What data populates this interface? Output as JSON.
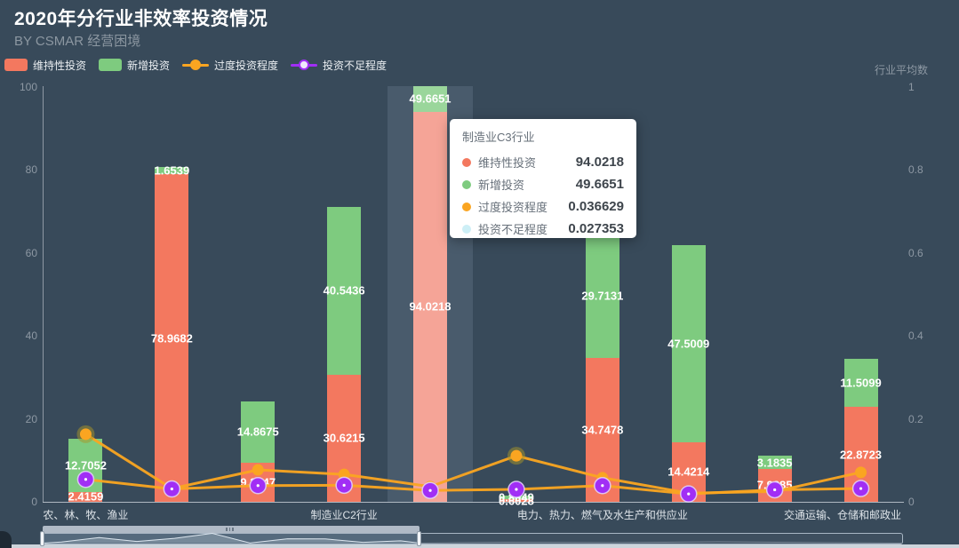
{
  "header": {
    "title": "2020年分行业非效率投资情况",
    "subtitle": "BY CSMAR 经营困境"
  },
  "legend": {
    "items": [
      {
        "label": "维持性投资",
        "type": "bar",
        "color": "#F3785F"
      },
      {
        "label": "新增投资",
        "type": "bar",
        "color": "#7ECB7F"
      },
      {
        "label": "过度投资程度",
        "type": "line",
        "color": "#FAA521"
      },
      {
        "label": "投资不足程度",
        "type": "line",
        "color": "#A12EF5"
      }
    ]
  },
  "axes": {
    "left": {
      "ticks": [
        "100",
        "80",
        "60",
        "40",
        "20",
        "0"
      ],
      "max": 100
    },
    "right": {
      "name": "行业平均数",
      "ticks": [
        "1",
        "0.8",
        "0.6",
        "0.4",
        "0.2",
        "0"
      ],
      "max": 1
    }
  },
  "chart_data": {
    "type": "bar",
    "categories": [
      "农、林、牧、渔业",
      "",
      "",
      "制造业C2行业",
      "制造业C3行业",
      "",
      "电力、热力、燃气及水生产和供应业",
      "",
      "",
      "交通运输、仓储和邮政业"
    ],
    "axis_label_indices": [
      0,
      3,
      6,
      9
    ],
    "series": [
      {
        "name": "维持性投资",
        "type": "bar",
        "yaxis": "left",
        "values": [
          2.4159,
          78.9682,
          9.3947,
          30.6215,
          94.0218,
          0.6028,
          34.7478,
          14.4214,
          7.9285,
          22.8723
        ]
      },
      {
        "name": "新增投资",
        "type": "bar",
        "yaxis": "left",
        "values": [
          12.7052,
          1.6539,
          14.8675,
          40.5436,
          49.6651,
          0.8049,
          29.7131,
          47.5009,
          3.1835,
          11.5099
        ]
      },
      {
        "name": "过度投资程度",
        "type": "line",
        "yaxis": "right",
        "values": [
          0.163,
          0.032,
          0.077,
          0.066,
          0.036629,
          0.111,
          0.058,
          0.021,
          0.025,
          0.071
        ]
      },
      {
        "name": "投资不足程度",
        "type": "line",
        "yaxis": "right",
        "values": [
          0.054,
          0.031,
          0.039,
          0.04,
          0.027353,
          0.03,
          0.039,
          0.019,
          0.029,
          0.032
        ]
      }
    ],
    "highlight_index": 4,
    "left_axis_range": [
      0,
      100
    ],
    "right_axis_range": [
      0,
      1
    ],
    "grid": false,
    "legend_position": "top-left"
  },
  "tooltip": {
    "title": "制造业C3行业",
    "rows": [
      {
        "label": "维持性投资",
        "value": "94.0218",
        "color": "#F3785F"
      },
      {
        "label": "新增投资",
        "value": "49.6651",
        "color": "#7ECB7F"
      },
      {
        "label": "过度投资程度",
        "value": "0.036629",
        "color": "#FAA521"
      },
      {
        "label": "投资不足程度",
        "value": "0.027353",
        "color": "#CDEFF6"
      }
    ]
  },
  "colors": {
    "background": "#384A5A",
    "bar_maintain": "#F3785F",
    "bar_maintain_hover": "#F5A497",
    "bar_new": "#7ECB7F",
    "bar_new_hover": "#9AD69B",
    "line_over": "#FAA521",
    "dot_under": "#A12EF5",
    "axis_label": "#8D98A3"
  }
}
